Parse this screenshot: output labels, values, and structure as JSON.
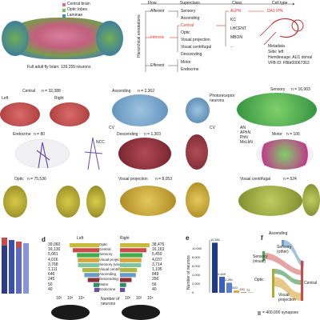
{
  "panel_a": {
    "legend": [
      "Central brain",
      "Optic lobes",
      "Laminae"
    ],
    "legend_colors": [
      "#e06b9a",
      "#7fbf5a",
      "#3e8fd0"
    ],
    "caption": "Full adult fly brain: 139,255 neurons"
  },
  "panel_b": {
    "headers": {
      "flow": "Flow",
      "superclass": "Superclass",
      "class": "Class",
      "cell_type": "Cell type"
    },
    "side_label": "Hierarchical annotations",
    "flow": [
      "Afferent",
      "Intrinsic",
      "Efferent"
    ],
    "superclasses": [
      "Sensory",
      "Ascending",
      "Central",
      "Optic",
      "Visual projection",
      "Visual centrifugal",
      "Descending",
      "Motor",
      "Endocrine"
    ],
    "classes": [
      "ALPN",
      "KC",
      "LHCENT",
      "MBON",
      "..."
    ],
    "cell_type": "DA1 IPN",
    "metadata_title": "Metadata",
    "metadata": [
      "Side: left",
      "Hemilineage: ALl1 dorsal",
      "VFB ID: FBbt00067363"
    ],
    "highlight_color": "#e0312b"
  },
  "panel_c": {
    "left_label": "Left",
    "right_label": "Right",
    "tiles": [
      {
        "label": "Central",
        "count": "n = 32,388",
        "color": "#c94a4a"
      },
      {
        "label": "Ascending",
        "count": "n = 2,362",
        "color": "#6a9cc4"
      },
      {
        "label": "Photoreceptor neurons",
        "color": "#6a9cc4"
      },
      {
        "label": "Sensory",
        "count": "n = 16,903",
        "color": "#3fae4f"
      },
      {
        "label": "Endocrine",
        "count": "n = 80",
        "color": "#6b4ea6"
      },
      {
        "label": "NCC",
        "color": "#6b4ea6"
      },
      {
        "label": "Descending",
        "count": "n = 1,303",
        "color": "#8c2f3a"
      },
      {
        "label": "Motor",
        "count": "n = 106",
        "color": "#3fae4f"
      },
      {
        "label": "Optic",
        "count": "n = 75,536",
        "color": "#b5a82e"
      },
      {
        "label": "Visual projection",
        "count": "n = 8,053",
        "color": "#b59a2e"
      },
      {
        "label": "Visual centrifugal",
        "count": "n = 524",
        "color": "#98a832"
      }
    ],
    "cv_labels": [
      "CV",
      "CV"
    ],
    "sensory_sub": [
      "AN",
      "APhN",
      "PhN",
      "MxLbN"
    ]
  },
  "panel_d": {
    "letter": "d",
    "left_header": "Left",
    "right_header": "Right",
    "categories": [
      "Optic",
      "Central",
      "Sensory",
      "Visual projection",
      "Sensory (visual)",
      "Visual centrifugal",
      "Ascending",
      "Descending",
      "Motor",
      "Endocrine"
    ],
    "left_values": [
      "39,060",
      "16,130",
      "5,061",
      "4,016",
      "3,768",
      "1,111",
      "646",
      "245",
      "50",
      "40"
    ],
    "right_values": [
      "38,476",
      "16,163",
      "5,450",
      "4,037",
      "3,714",
      "1,195",
      "849",
      "256",
      "56",
      "40"
    ],
    "xlabel": "Number of neurons",
    "tick_labels": [
      "10²",
      "10³",
      "10⁴"
    ],
    "colors": [
      "#c8bb3a",
      "#c94a4a",
      "#3fae4f",
      "#d7a43a",
      "#7fc6a0",
      "#b0b840",
      "#6a9cc4",
      "#8c2f3a",
      "#2f8f6a",
      "#6b4ea6"
    ]
  },
  "panel_e": {
    "letter": "e",
    "ylabel": "Number of neurons",
    "values": [
      "11,381",
      "3,649",
      "2,281",
      "510",
      "120",
      "72"
    ],
    "tick_labels": [
      "0",
      "2,000",
      "4,000",
      "6,000",
      "8,000",
      "10,000"
    ]
  },
  "panel_f": {
    "letter": "f",
    "nodes": [
      "Ascending",
      "Sensory (other)",
      "Sensory (visual)",
      "Optic",
      "Visual projection",
      "Central"
    ],
    "legend": "= 400,000 synapses"
  },
  "chart_data": [
    {
      "type": "bar",
      "categories": [
        "Optic",
        "Central",
        "Sensory",
        "Visual projection",
        "Sensory (visual)",
        "Visual centrifugal",
        "Ascending",
        "Descending",
        "Motor",
        "Endocrine"
      ],
      "series": [
        {
          "name": "Left",
          "values": [
            39060,
            16130,
            5061,
            4016,
            3768,
            1111,
            646,
            245,
            50,
            40
          ]
        },
        {
          "name": "Right",
          "values": [
            38476,
            16163,
            5450,
            4037,
            3714,
            1195,
            849,
            256,
            56,
            40
          ]
        }
      ],
      "xlabel": "Number of neurons",
      "scale": "log"
    },
    {
      "type": "bar",
      "values": [
        11381,
        3649,
        2281,
        510,
        120,
        72
      ],
      "ylabel": "Number of neurons",
      "ylim": [
        0,
        12000
      ]
    }
  ]
}
